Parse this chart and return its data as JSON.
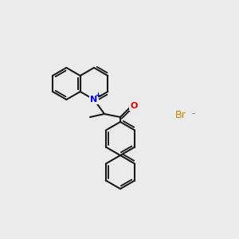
{
  "background_color": "#ebebeb",
  "bond_color": "#1a1a1a",
  "N_color": "#0000ff",
  "O_color": "#dd0000",
  "Br_color": "#cc8800",
  "minus_color": "#888888",
  "N_label": "N",
  "N_charge": "+",
  "O_label": "O",
  "Br_label": "Br",
  "minus_label": "-",
  "figsize": [
    3.0,
    3.0
  ],
  "dpi": 100
}
